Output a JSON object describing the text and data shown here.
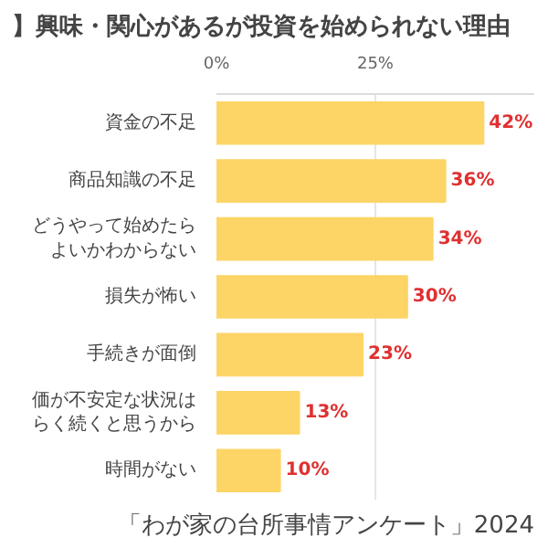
{
  "chart_data": {
    "type": "bar",
    "orientation": "horizontal",
    "title": "】興味・関心があるが投資を始められない理由",
    "categories": [
      "資金の不足",
      "商品知識の不足",
      "どうやって始めたらよいかわからない",
      "損失が怖い",
      "手続きが面倒",
      "価が不安定な状況はらく続くと思うから",
      "時間がない"
    ],
    "values": [
      42,
      36,
      34,
      30,
      23,
      13,
      10
    ],
    "color": "#fdd466",
    "xlim": [
      0,
      50
    ],
    "xticks": [
      {
        "value": 0,
        "label": "0%"
      },
      {
        "value": 25,
        "label": "25%"
      }
    ],
    "value_labels": [
      "42%",
      "36%",
      "34%",
      "30%",
      "23%",
      "13%",
      "10%"
    ],
    "grid": "x",
    "annotations": [
      "「わが家の台所事情アンケート」2024"
    ]
  }
}
